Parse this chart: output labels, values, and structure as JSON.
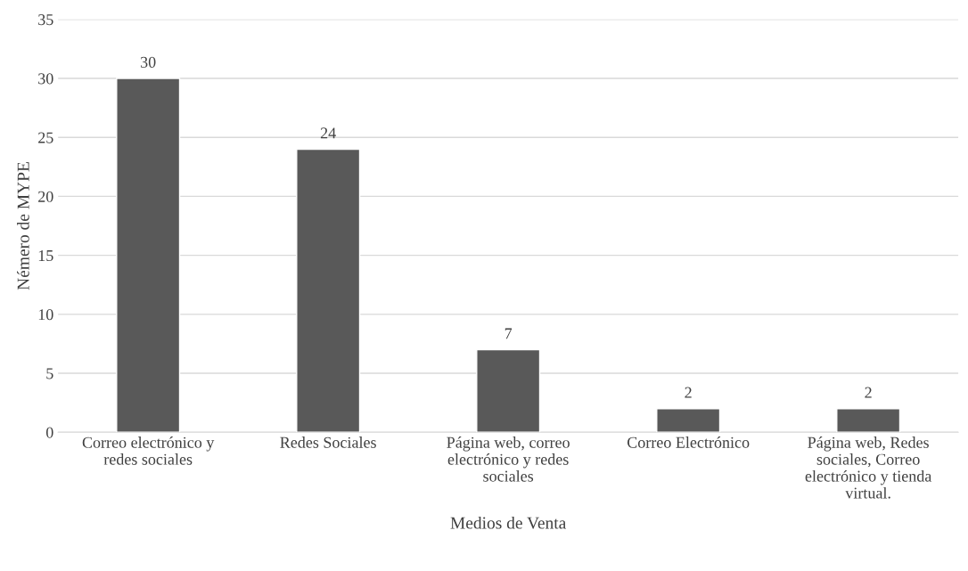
{
  "chart_data": {
    "type": "bar",
    "categories": [
      "Correo electrónico y\nredes sociales",
      "Redes Sociales",
      "Página web, correo\nelectrónico y redes\nsociales",
      "Correo Electrónico",
      "Página web, Redes\nsociales, Correo\nelectrónico y tienda\nvirtual."
    ],
    "values": [
      30,
      24,
      7,
      2,
      2
    ],
    "color": "#595959",
    "xlabel": "Medios de Venta",
    "ylabel": "Némero de MYPE",
    "ylim": [
      0,
      35
    ],
    "yticks": [
      0,
      5,
      10,
      15,
      20,
      25,
      30,
      35
    ],
    "grid": "y",
    "data_labels": true
  }
}
